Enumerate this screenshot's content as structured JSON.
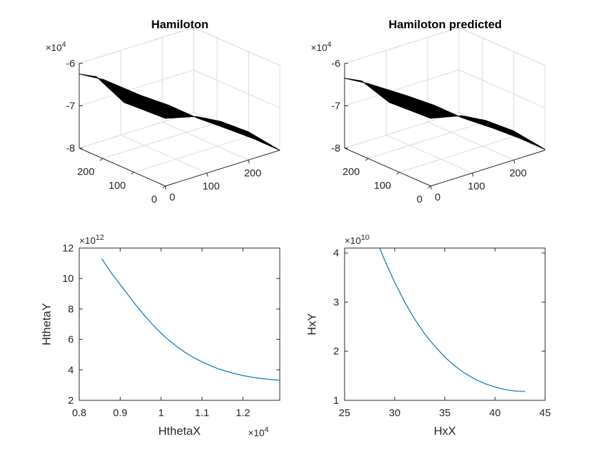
{
  "colors": {
    "line": "#0072BD",
    "surface": "#000000",
    "axis": "#262626",
    "grid": "#dcdcdc"
  },
  "chart_data": [
    {
      "type": "surface",
      "title": "Hamiloton",
      "zlim": [
        -80000,
        -60000
      ],
      "z_tick_labels": [
        "-6",
        "-7",
        "-8"
      ],
      "z_exponent": "×10",
      "z_exponent_power": "4",
      "x_tick_labels": [
        "0",
        "100",
        "200"
      ],
      "y_tick_labels": [
        "0",
        "100",
        "200"
      ],
      "grid": true,
      "surface": {
        "high_corner_z": -62500,
        "mid_z": -71500,
        "low_corner_z": -80500
      }
    },
    {
      "type": "surface",
      "title": "Hamiloton predicted",
      "zlim": [
        -80000,
        -60000
      ],
      "z_tick_labels": [
        "-6",
        "-7",
        "-8"
      ],
      "z_exponent": "×10",
      "z_exponent_power": "4",
      "x_tick_labels": [
        "0",
        "100",
        "200"
      ],
      "y_tick_labels": [
        "0",
        "100",
        "200"
      ],
      "grid": true,
      "surface": {
        "high_corner_z": -63500,
        "mid_z": -71500,
        "low_corner_z": -80300
      }
    },
    {
      "type": "line",
      "title": "",
      "xlabel": "HthetaX",
      "ylabel": "HthetaY",
      "xlim": [
        8000,
        12900
      ],
      "ylim": [
        2000000000000.0,
        12000000000000.0
      ],
      "x_ticks": [
        8000,
        9000,
        10000,
        11000,
        12000
      ],
      "x_tick_labels": [
        "0.8",
        "0.9",
        "1",
        "1.1",
        "1.2"
      ],
      "x_exponent": "×10",
      "x_exponent_power": "4",
      "y_ticks": [
        2000000000000.0,
        4000000000000.0,
        6000000000000.0,
        8000000000000.0,
        10000000000000.0,
        12000000000000.0
      ],
      "y_tick_labels": [
        "2",
        "4",
        "6",
        "8",
        "10",
        "12"
      ],
      "y_exponent": "×10",
      "y_exponent_power": "12",
      "series": [
        {
          "x": [
            8550,
            8800,
            9000,
            9200,
            9400,
            9600,
            9800,
            10000,
            10200,
            10400,
            10600,
            10800,
            11000,
            11200,
            11400,
            11600,
            11800,
            12000,
            12200,
            12400,
            12600,
            12800,
            12900
          ],
          "y": [
            11300000000000.0,
            10300000000000.0,
            9600000000000.0,
            8900000000000.0,
            8200000000000.0,
            7550000000000.0,
            6950000000000.0,
            6400000000000.0,
            5920000000000.0,
            5500000000000.0,
            5120000000000.0,
            4800000000000.0,
            4520000000000.0,
            4280000000000.0,
            4070000000000.0,
            3900000000000.0,
            3750000000000.0,
            3630000000000.0,
            3530000000000.0,
            3450000000000.0,
            3390000000000.0,
            3340000000000.0,
            3320000000000.0
          ]
        }
      ]
    },
    {
      "type": "line",
      "title": "",
      "xlabel": "HxX",
      "ylabel": "HxY",
      "xlim": [
        25,
        45
      ],
      "ylim": [
        10000000000.0,
        41000000000.0
      ],
      "x_ticks": [
        25,
        30,
        35,
        40,
        45
      ],
      "x_tick_labels": [
        "25",
        "30",
        "35",
        "40",
        "45"
      ],
      "y_ticks": [
        10000000000.0,
        20000000000.0,
        30000000000.0,
        40000000000.0
      ],
      "y_tick_labels": [
        "1",
        "2",
        "3",
        "4"
      ],
      "y_exponent": "×10",
      "y_exponent_power": "10",
      "series": [
        {
          "x": [
            28.5,
            29,
            30,
            31,
            32,
            33,
            34,
            35,
            36,
            37,
            38,
            39,
            40,
            41,
            42,
            43
          ],
          "y": [
            41000000000.0,
            38500000000.0,
            34000000000.0,
            30000000000.0,
            26500000000.0,
            23500000000.0,
            21000000000.0,
            18800000000.0,
            17000000000.0,
            15500000000.0,
            14300000000.0,
            13400000000.0,
            12700000000.0,
            12200000000.0,
            11900000000.0,
            11800000000.0
          ]
        }
      ]
    }
  ]
}
